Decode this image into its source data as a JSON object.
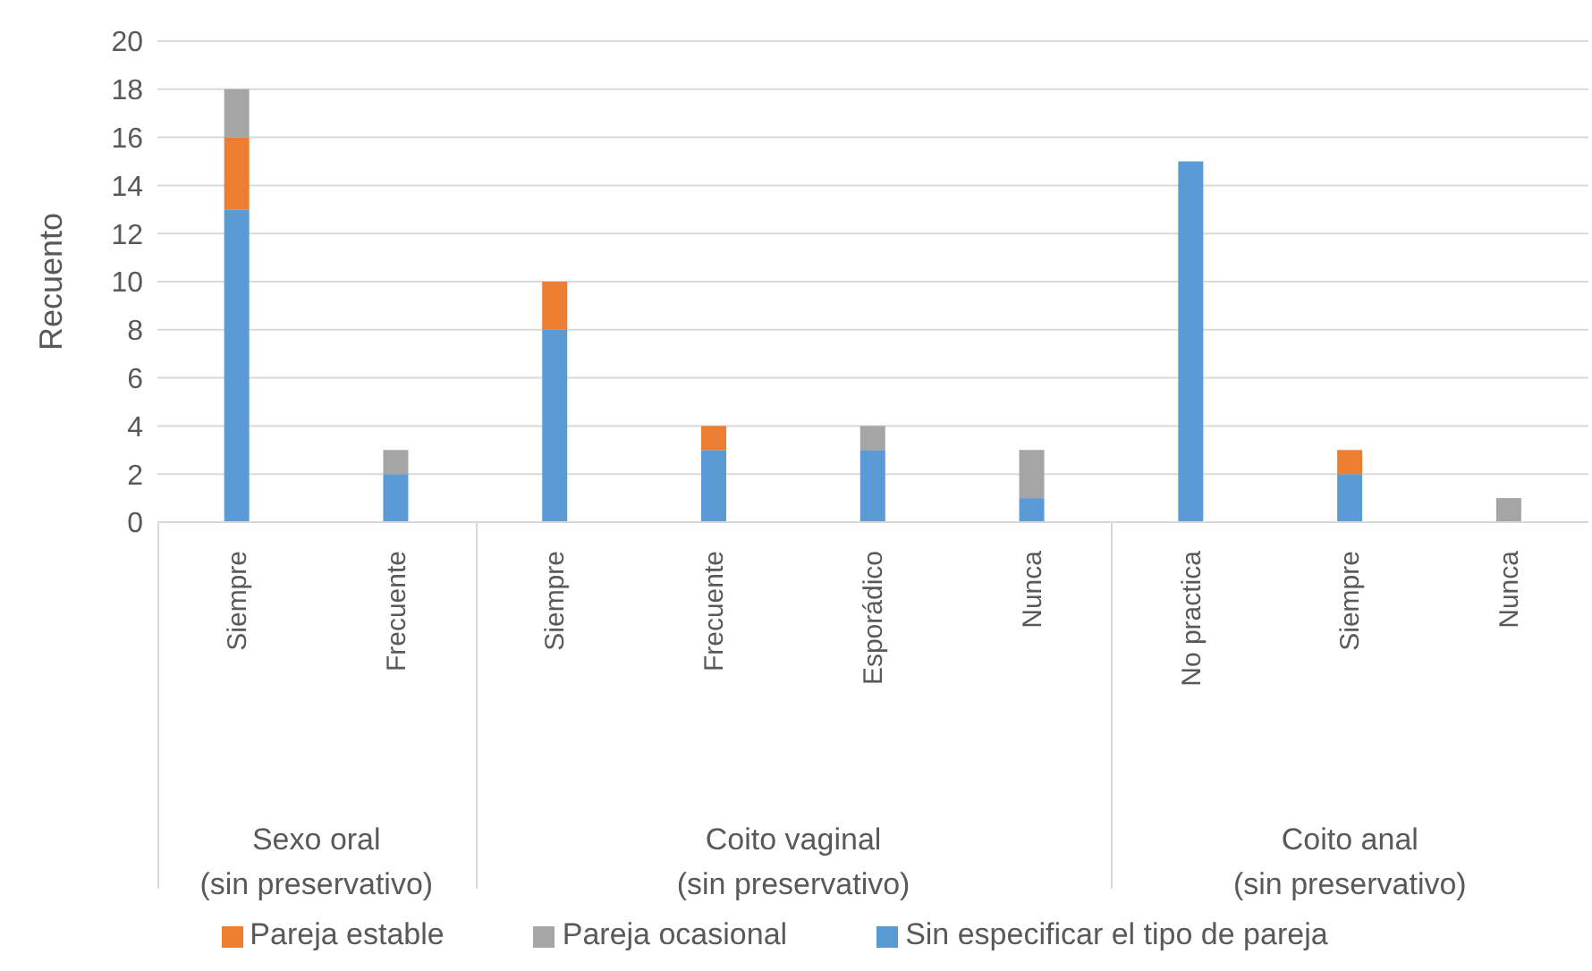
{
  "chart_data": {
    "type": "bar",
    "stacked": true,
    "ylabel": "Recuento",
    "categories": [
      "Siempre",
      "Frecuente",
      "Siempre",
      "Frecuente",
      "Esporádico",
      "Nunca",
      "No practica",
      "Siempre",
      "Nunca"
    ],
    "series": [
      {
        "name": "Sin especificar el tipo de pareja",
        "color": "#5b9bd5",
        "values": [
          13,
          2,
          8,
          3,
          3,
          1,
          15,
          2,
          0
        ]
      },
      {
        "name": "Pareja estable",
        "color": "#ed7d31",
        "values": [
          3,
          0,
          2,
          1,
          0,
          0,
          0,
          1,
          0
        ]
      },
      {
        "name": "Pareja ocasional",
        "color": "#a5a5a5",
        "values": [
          2,
          1,
          0,
          0,
          1,
          2,
          0,
          0,
          1
        ]
      }
    ],
    "ylim": [
      0,
      20
    ],
    "yticks": [
      0,
      2,
      4,
      6,
      8,
      10,
      12,
      14,
      16,
      18,
      20
    ],
    "grid": "y",
    "legend": "bottom",
    "annotations": [
      "Sexo oral\n(sin preservativo)",
      "Coito vaginal\n(sin preservativo)",
      "Coito anal\n(sin preservativo)"
    ]
  }
}
